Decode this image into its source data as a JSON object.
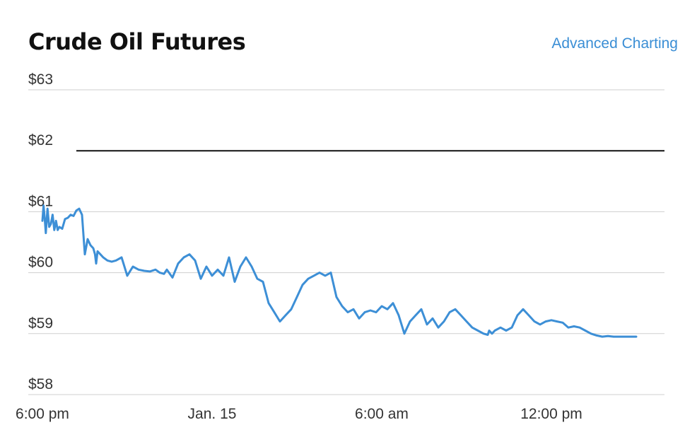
{
  "header": {
    "title": "Crude Oil Futures",
    "advanced_link": "Advanced Charting"
  },
  "colors": {
    "line": "#3d8fd6",
    "grid": "#cfcfcf",
    "reference": "#111111",
    "text": "#333333",
    "link": "#3a8ed5"
  },
  "chart_data": {
    "type": "line",
    "title": "Crude Oil Futures",
    "xlabel": "",
    "ylabel": "",
    "ylim": [
      58,
      63
    ],
    "yticks": [
      63,
      62,
      61,
      60,
      59,
      58
    ],
    "ytick_labels": [
      "$63",
      "$62",
      "$61",
      "$60",
      "$59",
      "$58"
    ],
    "grid": true,
    "reference_line": 62,
    "xlim_hours": [
      -0.5,
      22
    ],
    "xticks": [
      {
        "label": "6:00 pm",
        "hour": 0
      },
      {
        "label": "Jan. 15",
        "hour": 6
      },
      {
        "label": "6:00 am",
        "hour": 12
      },
      {
        "label": "12:00 pm",
        "hour": 18
      }
    ],
    "series": [
      {
        "x": [
          0.0,
          0.04,
          0.08,
          0.12,
          0.18,
          0.24,
          0.3,
          0.36,
          0.42,
          0.48,
          0.54,
          0.6,
          0.7,
          0.8,
          0.9,
          1.0,
          1.1,
          1.2,
          1.3,
          1.4,
          1.5,
          1.6,
          1.7,
          1.8,
          1.86,
          1.9,
          1.95,
          2.05,
          2.15,
          2.3,
          2.45,
          2.6,
          2.8,
          3.0,
          3.2,
          3.4,
          3.6,
          3.8,
          4.0,
          4.15,
          4.3,
          4.4,
          4.6,
          4.8,
          5.0,
          5.2,
          5.4,
          5.6,
          5.8,
          6.0,
          6.2,
          6.4,
          6.6,
          6.8,
          7.0,
          7.2,
          7.4,
          7.6,
          7.8,
          8.0,
          8.2,
          8.4,
          8.6,
          8.8,
          9.0,
          9.2,
          9.4,
          9.6,
          9.8,
          10.0,
          10.2,
          10.4,
          10.6,
          10.8,
          11.0,
          11.2,
          11.4,
          11.6,
          11.8,
          12.0,
          12.2,
          12.4,
          12.6,
          12.8,
          13.0,
          13.2,
          13.4,
          13.6,
          13.8,
          14.0,
          14.2,
          14.4,
          14.6,
          14.8,
          15.0,
          15.2,
          15.4,
          15.6,
          15.75,
          15.8,
          15.9,
          16.0,
          16.2,
          16.4,
          16.6,
          16.8,
          17.0,
          17.2,
          17.4,
          17.6,
          17.8,
          18.0,
          18.2,
          18.4,
          18.6,
          18.8,
          19.0,
          19.2,
          19.4,
          19.6,
          19.8,
          20.0,
          20.2,
          20.4,
          20.6,
          20.8,
          21.0
        ],
        "values": [
          60.85,
          61.1,
          60.9,
          60.65,
          61.05,
          60.75,
          60.8,
          60.95,
          60.7,
          60.85,
          60.7,
          60.75,
          60.72,
          60.88,
          60.9,
          60.95,
          60.93,
          61.02,
          61.05,
          60.95,
          60.3,
          60.55,
          60.45,
          60.4,
          60.3,
          60.15,
          60.35,
          60.3,
          60.25,
          60.2,
          60.18,
          60.2,
          60.25,
          59.95,
          60.1,
          60.05,
          60.03,
          60.02,
          60.05,
          60.0,
          59.98,
          60.05,
          59.92,
          60.15,
          60.25,
          60.3,
          60.2,
          59.9,
          60.1,
          59.95,
          60.05,
          59.95,
          60.25,
          59.85,
          60.1,
          60.25,
          60.1,
          59.9,
          59.85,
          59.5,
          59.35,
          59.2,
          59.3,
          59.4,
          59.6,
          59.8,
          59.9,
          59.95,
          60.0,
          59.95,
          60.0,
          59.6,
          59.45,
          59.35,
          59.4,
          59.25,
          59.35,
          59.38,
          59.35,
          59.45,
          59.4,
          59.5,
          59.3,
          59.0,
          59.2,
          59.3,
          59.4,
          59.15,
          59.25,
          59.1,
          59.2,
          59.35,
          59.4,
          59.3,
          59.2,
          59.1,
          59.05,
          59.0,
          58.98,
          59.05,
          59.0,
          59.05,
          59.1,
          59.05,
          59.1,
          59.3,
          59.4,
          59.3,
          59.2,
          59.15,
          59.2,
          59.22,
          59.2,
          59.18,
          59.1,
          59.12,
          59.1,
          59.05,
          59.0,
          58.97,
          58.95,
          58.96,
          58.95,
          58.95,
          58.95,
          58.95,
          58.95
        ]
      }
    ]
  }
}
